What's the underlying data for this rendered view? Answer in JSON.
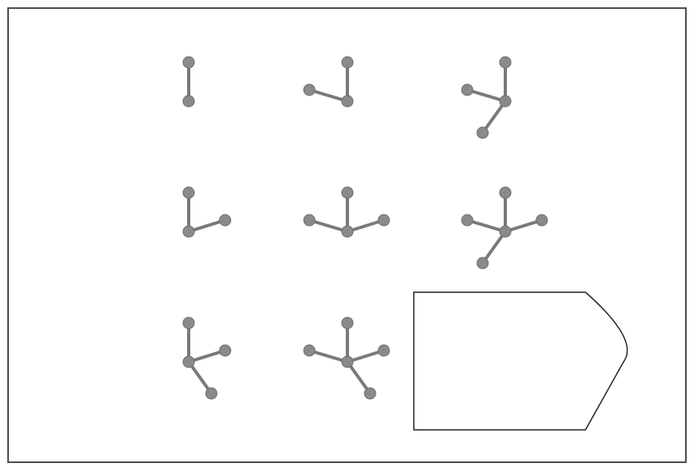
{
  "puzzle": {
    "grid": {
      "rows": 3,
      "cols": 3,
      "cells": [
        {
          "row": 0,
          "col": 0,
          "arms": [
            "up"
          ]
        },
        {
          "row": 0,
          "col": 1,
          "arms": [
            "up",
            "left"
          ]
        },
        {
          "row": 0,
          "col": 2,
          "arms": [
            "up",
            "left",
            "down-left"
          ]
        },
        {
          "row": 1,
          "col": 0,
          "arms": [
            "up",
            "right"
          ]
        },
        {
          "row": 1,
          "col": 1,
          "arms": [
            "up",
            "left",
            "right"
          ]
        },
        {
          "row": 1,
          "col": 2,
          "arms": [
            "up",
            "left",
            "right",
            "down-left"
          ]
        },
        {
          "row": 2,
          "col": 0,
          "arms": [
            "up",
            "right",
            "down-right"
          ]
        },
        {
          "row": 2,
          "col": 1,
          "arms": [
            "up",
            "left",
            "right",
            "down-right"
          ]
        }
      ],
      "missing_cell": {
        "row": 2,
        "col": 2,
        "shape": "pentagon-arrow-placeholder"
      }
    },
    "colors": {
      "node": "#8a8a8a",
      "edge": "#7a7a7a",
      "frame": "#4d4d4d",
      "placeholder": "#222222"
    }
  }
}
